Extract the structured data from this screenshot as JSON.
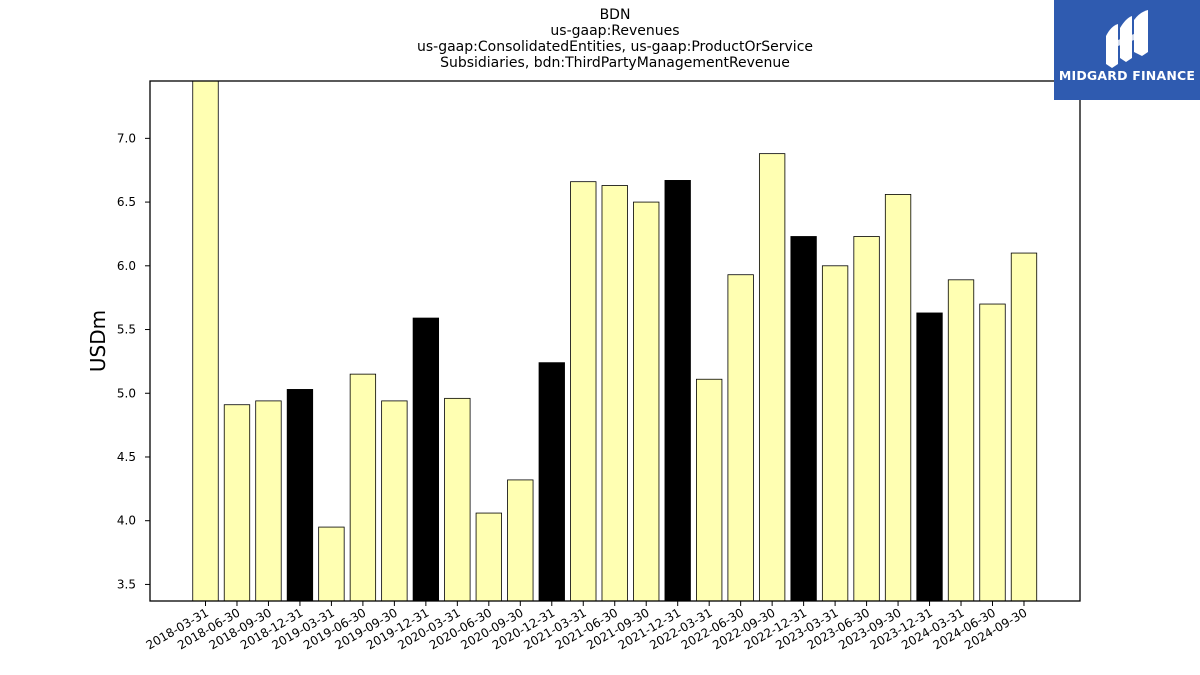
{
  "chart_data": {
    "type": "bar",
    "title_lines": [
      "BDN",
      "us-gaap:Revenues",
      "us-gaap:ConsolidatedEntities, us-gaap:ProductOrService",
      "Subsidiaries, bdn:ThirdPartyManagementRevenue"
    ],
    "ylabel": "USDm",
    "xlabel": "",
    "ylim": [
      3.37,
      7.45
    ],
    "yticks": [
      "3.5",
      "4.0",
      "4.5",
      "5.0",
      "5.5",
      "6.0",
      "6.5",
      "7.0"
    ],
    "categories": [
      "2018-03-31",
      "2018-06-30",
      "2018-09-30",
      "2018-12-31",
      "2019-03-31",
      "2019-06-30",
      "2019-09-30",
      "2019-12-31",
      "2020-03-31",
      "2020-06-30",
      "2020-09-30",
      "2020-12-31",
      "2021-03-31",
      "2021-06-30",
      "2021-09-30",
      "2021-12-31",
      "2022-03-31",
      "2022-06-30",
      "2022-09-30",
      "2022-12-31",
      "2023-03-31",
      "2023-06-30",
      "2023-09-30",
      "2023-12-31",
      "2024-03-31",
      "2024-06-30",
      "2024-09-30"
    ],
    "values": [
      7.45,
      4.91,
      4.94,
      5.03,
      3.95,
      5.15,
      4.94,
      5.59,
      4.96,
      4.06,
      4.32,
      5.24,
      6.66,
      6.63,
      6.5,
      6.67,
      5.11,
      5.93,
      6.88,
      6.23,
      6.0,
      6.23,
      6.56,
      5.63,
      5.89,
      5.7,
      6.1
    ],
    "highlight_indices": [
      3,
      7,
      11,
      15,
      19,
      23
    ],
    "colors": {
      "bar": "#ffffb2",
      "highlight": "#000000",
      "edge": "#000000"
    },
    "grid": false
  },
  "logo": {
    "text": "MIDGARD FINANCE",
    "background": "#2f5bb0"
  }
}
